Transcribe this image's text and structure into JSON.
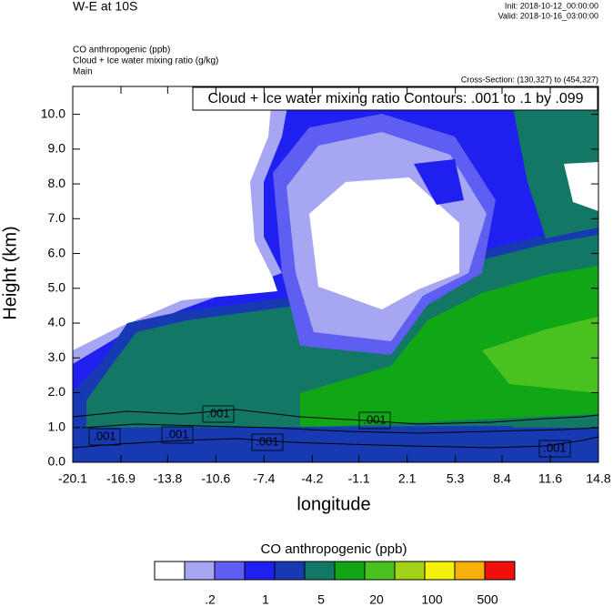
{
  "chart_data": {
    "type": "contour",
    "title": "W-E at 10S",
    "init": "Init: 2018-10-12_00:00:00",
    "valid": "Valid: 2018-10-16_03:00:00",
    "fields": [
      "CO anthropogenic   (ppb)",
      "Cloud + Ice water mixing ratio   (g/kg)",
      "Main"
    ],
    "cross_section": "Cross-Section: (130,327) to (454,327)",
    "contour_info": "Cloud + Ice water mixing ratio Contours: .001 to .1 by .099",
    "x_label": "longitude",
    "y_label": "Height (km)",
    "xlim": [
      -20.1,
      14.8
    ],
    "xticks": [
      -20.1,
      -16.9,
      -13.8,
      -10.6,
      -7.4,
      -4.2,
      -1.1,
      2.1,
      5.3,
      8.4,
      11.6,
      14.8
    ],
    "ylim": [
      0,
      10.8
    ],
    "yticks": [
      {
        "value": 0,
        "label": "0.0"
      },
      {
        "value": 1,
        "label": "1.0"
      },
      {
        "value": 2,
        "label": "2.0"
      },
      {
        "value": 3,
        "label": "3.0"
      },
      {
        "value": 4,
        "label": "4.0"
      },
      {
        "value": 5,
        "label": "5.0"
      },
      {
        "value": 6,
        "label": "6.0"
      },
      {
        "value": 7,
        "label": "7.0"
      },
      {
        "value": 8,
        "label": "8.0"
      },
      {
        "value": 9,
        "label": "9.0"
      },
      {
        "value": 10,
        "label": "10.0"
      }
    ],
    "contour_labels": [
      {
        "value": 0.001,
        "label": ".001"
      },
      {
        "value": 0.001,
        "label": ".001"
      },
      {
        "value": 0.001,
        "label": ".001"
      },
      {
        "value": 0.001,
        "label": ".001"
      },
      {
        "value": 0.001,
        "label": ".001"
      },
      {
        "value": 0.001,
        "label": ".001"
      }
    ],
    "colorbar": {
      "title": "CO anthropogenic  (ppb)",
      "colors": [
        "#ffffff",
        "#a6a6f2",
        "#5e5ef2",
        "#1f1ff0",
        "#173ab3",
        "#127765",
        "#10a616",
        "#49c21f",
        "#a3d319",
        "#f2f20a",
        "#f5b10a",
        "#f0100a"
      ],
      "labels": [
        {
          "value": 0.2,
          "label": ".2"
        },
        1,
        5,
        20,
        100,
        500
      ]
    }
  }
}
